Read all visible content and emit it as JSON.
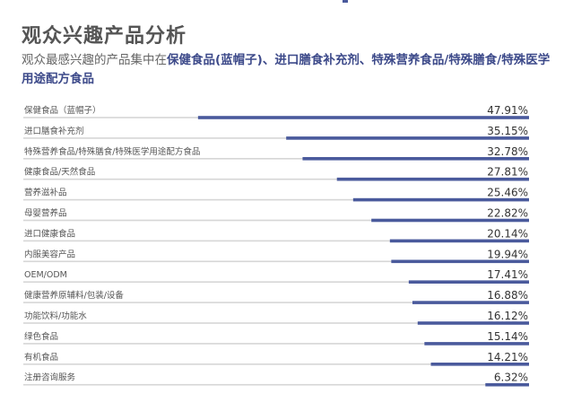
{
  "header": {
    "title": "观众兴趣产品分析",
    "subtitle_prefix": "观众最感兴趣的产品集中在",
    "subtitle_highlight": "保健食品(蓝帽子)、进口膳食补充剂、特殊营养食品/特殊膳食/特殊医学用途配方食品"
  },
  "colors": {
    "bar": "#4a5a9c",
    "separator": "#d6d6d6",
    "label": "#555555",
    "value": "#333333"
  },
  "chart_data": {
    "type": "bar",
    "orientation": "horizontal",
    "categories": [
      "保健食品（蓝帽子）",
      "进口膳食补充剂",
      "特殊营养食品/特殊膳食/特殊医学用途配方食品",
      "健康食品/天然食品",
      "营养滋补品",
      "母婴营养品",
      "进口健康食品",
      "内服美容产品",
      "OEM/ODM",
      "健康营养原辅料/包装/设备",
      "功能饮料/功能水",
      "绿色食品",
      "有机食品",
      "注册咨询服务"
    ],
    "values": [
      47.91,
      35.15,
      32.78,
      27.81,
      25.46,
      22.82,
      20.14,
      19.94,
      17.41,
      16.88,
      16.12,
      15.14,
      14.21,
      6.32
    ],
    "value_labels": [
      "47.91%",
      "35.15%",
      "32.78%",
      "27.81%",
      "25.46%",
      "22.82%",
      "20.14%",
      "19.94%",
      "17.41%",
      "16.88%",
      "16.12%",
      "15.14%",
      "14.21%",
      "6.32%"
    ],
    "xlim": [
      0,
      50
    ],
    "grid": false
  }
}
